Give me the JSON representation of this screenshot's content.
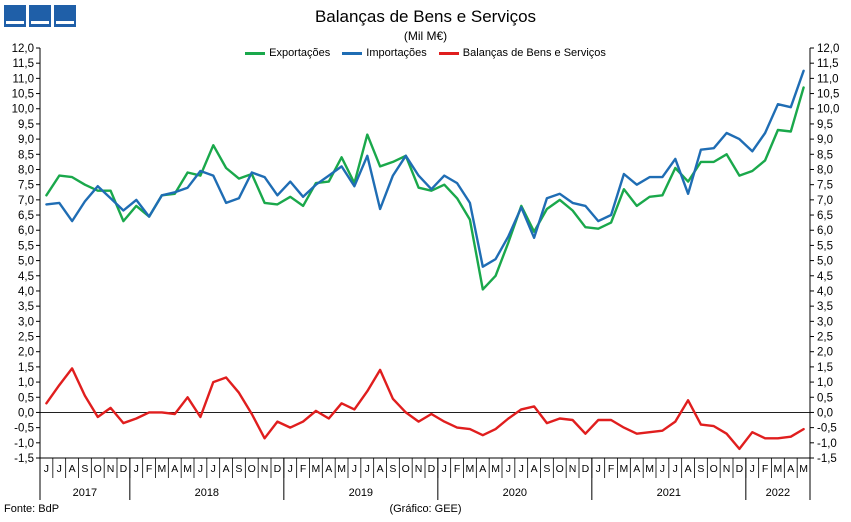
{
  "header": {
    "title": "Balanças de Bens e Serviços",
    "subtitle": "(Mil M€)"
  },
  "footer": {
    "source": "Fonte: BdP",
    "credit": "(Gráfico: GEE)"
  },
  "colors": {
    "exports": "#1aa84b",
    "imports": "#1f6db4",
    "balance": "#e01e1e",
    "logo": "#1f5fa8"
  },
  "icons": [
    "logo-square-icon",
    "logo-square-icon",
    "logo-square-icon"
  ],
  "chart_data": {
    "type": "line",
    "title": "Balanças de Bens e Serviços",
    "subtitle": "(Mil M€)",
    "ylim": [
      -1.5,
      12.0
    ],
    "ytick_step": 0.5,
    "y_axes": "left-and-right",
    "grid": false,
    "legend": "top-center",
    "month_labels": [
      "J",
      "J",
      "A",
      "S",
      "O",
      "N",
      "D",
      "J",
      "F",
      "M",
      "A",
      "M",
      "J",
      "J",
      "A",
      "S",
      "O",
      "N",
      "D",
      "J",
      "F",
      "M",
      "A",
      "M",
      "J",
      "J",
      "A",
      "S",
      "O",
      "N",
      "D",
      "J",
      "F",
      "M",
      "A",
      "M",
      "J",
      "J",
      "A",
      "S",
      "O",
      "N",
      "D",
      "J",
      "F",
      "M",
      "A",
      "M",
      "J",
      "J",
      "A",
      "S",
      "O",
      "N",
      "D",
      "J",
      "F",
      "M",
      "A",
      "M"
    ],
    "years": [
      {
        "label": "2017",
        "start": 0,
        "count": 7
      },
      {
        "label": "2018",
        "start": 7,
        "count": 12
      },
      {
        "label": "2019",
        "start": 19,
        "count": 12
      },
      {
        "label": "2020",
        "start": 31,
        "count": 12
      },
      {
        "label": "2021",
        "start": 43,
        "count": 12
      },
      {
        "label": "2022",
        "start": 55,
        "count": 5
      }
    ],
    "series": [
      {
        "name": "Exportações",
        "color": "#1aa84b",
        "values": [
          7.15,
          7.8,
          7.75,
          7.5,
          7.3,
          7.3,
          6.3,
          6.8,
          6.45,
          7.15,
          7.2,
          7.9,
          7.8,
          8.8,
          8.05,
          7.7,
          7.85,
          6.9,
          6.85,
          7.1,
          6.8,
          7.55,
          7.6,
          8.4,
          7.55,
          9.15,
          8.1,
          8.25,
          8.45,
          7.4,
          7.3,
          7.5,
          7.05,
          6.35,
          4.05,
          4.5,
          5.6,
          6.8,
          5.95,
          6.7,
          7.0,
          6.65,
          6.1,
          6.05,
          6.25,
          7.35,
          6.8,
          7.1,
          7.15,
          8.05,
          7.6,
          8.25,
          8.25,
          8.5,
          7.8,
          7.95,
          8.3,
          9.3,
          9.25,
          10.7
        ]
      },
      {
        "name": "Importações",
        "color": "#1f6db4",
        "values": [
          6.85,
          6.9,
          6.3,
          6.95,
          7.45,
          7.05,
          6.65,
          7.0,
          6.45,
          7.15,
          7.25,
          7.4,
          7.95,
          7.8,
          6.9,
          7.05,
          7.9,
          7.75,
          7.15,
          7.6,
          7.1,
          7.5,
          7.8,
          8.1,
          7.45,
          8.45,
          6.7,
          7.8,
          8.45,
          7.8,
          7.35,
          7.8,
          7.55,
          6.9,
          4.8,
          5.05,
          5.8,
          6.75,
          5.75,
          7.05,
          7.2,
          6.9,
          6.8,
          6.3,
          6.5,
          7.85,
          7.5,
          7.75,
          7.75,
          8.35,
          7.2,
          8.65,
          8.7,
          9.2,
          9.0,
          8.6,
          9.2,
          10.15,
          10.05,
          11.25
        ]
      },
      {
        "name": "Balanças de Bens e Serviços",
        "color": "#e01e1e",
        "values": [
          0.3,
          0.9,
          1.45,
          0.55,
          -0.15,
          0.15,
          -0.35,
          -0.2,
          0.0,
          0.0,
          -0.05,
          0.5,
          -0.15,
          1.0,
          1.15,
          0.65,
          -0.05,
          -0.85,
          -0.3,
          -0.5,
          -0.3,
          0.05,
          -0.2,
          0.3,
          0.1,
          0.7,
          1.4,
          0.45,
          0.0,
          -0.3,
          -0.05,
          -0.3,
          -0.5,
          -0.55,
          -0.75,
          -0.55,
          -0.2,
          0.1,
          0.2,
          -0.35,
          -0.2,
          -0.25,
          -0.7,
          -0.25,
          -0.25,
          -0.5,
          -0.7,
          -0.65,
          -0.6,
          -0.3,
          0.4,
          -0.4,
          -0.45,
          -0.7,
          -1.2,
          -0.65,
          -0.85,
          -0.85,
          -0.8,
          -0.55
        ]
      }
    ]
  }
}
